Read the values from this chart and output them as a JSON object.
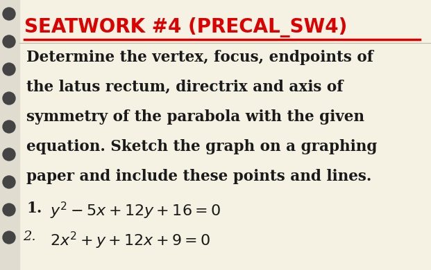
{
  "title": "SEATWORK #4 (PRECAL_SW4)",
  "title_color": "#DD0000",
  "background_color": "#F5F2E3",
  "left_strip_color": "#E0DDD0",
  "body_text_color": "#1a1a1a",
  "body_lines": [
    "Determine the vertex, focus, endpoints of",
    "the latus rectum, directrix and axis of",
    "symmetry of the parabola with the given",
    "equation. Sketch the graph on a graphing",
    "paper and include these points and lines."
  ],
  "item1_num": "1.",
  "item1_eq": "$y^2 - 5x + 12y + 16 = 0$",
  "item2_num": "2.",
  "item2_eq": "$2x^2 + y + 12x + 9 = 0$",
  "dot_color": "#444444",
  "underline_color": "#DD0000",
  "title_fontsize": 20,
  "body_fontsize": 15.5,
  "eq_fontsize": 16,
  "num2_fontsize": 14,
  "figsize": [
    6.21,
    3.9
  ],
  "dpi": 100
}
